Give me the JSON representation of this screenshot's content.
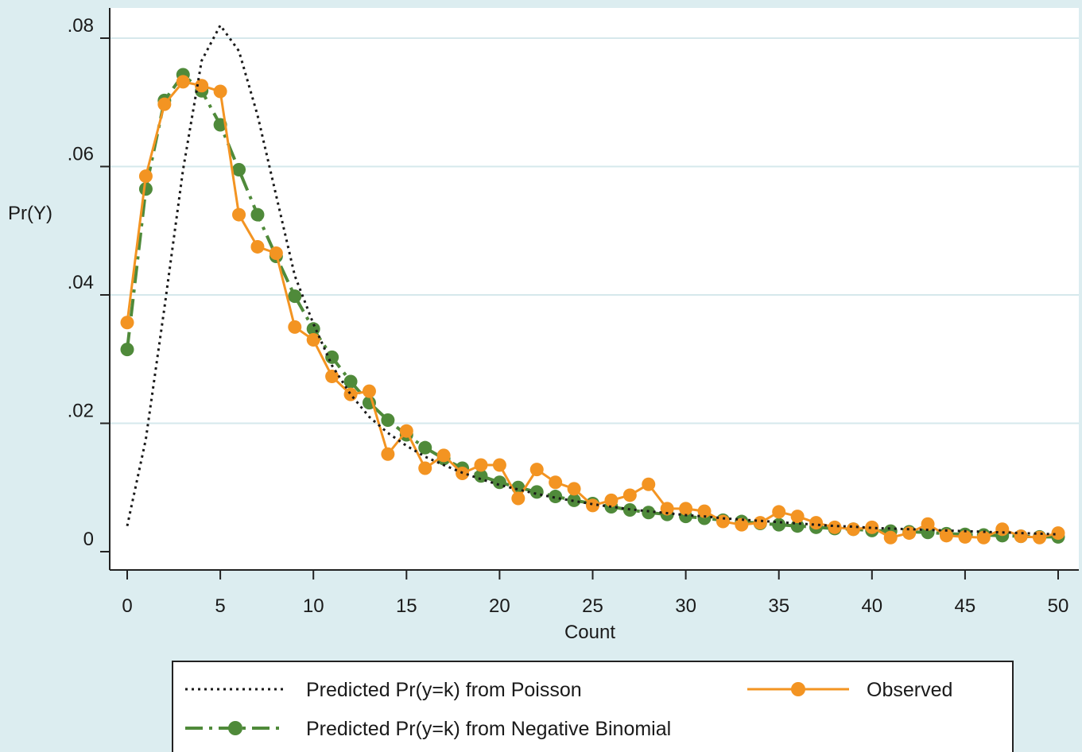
{
  "chart_data": {
    "type": "line",
    "title": "",
    "xlabel": "Count",
    "ylabel": "Pr(Y)",
    "xlim": [
      0,
      50
    ],
    "ylim": [
      0,
      0.08
    ],
    "x_ticks": [
      0,
      5,
      10,
      15,
      20,
      25,
      30,
      35,
      40,
      45,
      50
    ],
    "x_tick_labels": [
      "0",
      "5",
      "10",
      "15",
      "20",
      "25",
      "30",
      "35",
      "40",
      "45",
      "50"
    ],
    "y_ticks": [
      0,
      0.02,
      0.04,
      0.06,
      0.08
    ],
    "y_tick_labels": [
      "0",
      ".02",
      ".04",
      ".06",
      ".08"
    ],
    "grid": "horizontal",
    "legend_position": "bottom",
    "colors": {
      "background": "#dcedf0",
      "plot_area": "#ffffff",
      "grid": "#d6e8ec",
      "poisson": "#1a1a1a",
      "negative_binomial": "#4f8a3a",
      "observed": "#f39422"
    },
    "x": [
      0,
      1,
      2,
      3,
      4,
      5,
      6,
      7,
      8,
      9,
      10,
      11,
      12,
      13,
      14,
      15,
      16,
      17,
      18,
      19,
      20,
      21,
      22,
      23,
      24,
      25,
      26,
      27,
      28,
      29,
      30,
      31,
      32,
      33,
      34,
      35,
      36,
      37,
      38,
      39,
      40,
      41,
      42,
      43,
      44,
      45,
      46,
      47,
      48,
      49,
      50
    ],
    "series": [
      {
        "name": "Predicted Pr(y=k) from Poisson",
        "style": "dotted",
        "values": [
          0.004,
          0.0175,
          0.038,
          0.0595,
          0.0765,
          0.082,
          0.078,
          0.068,
          0.0555,
          0.043,
          0.0355,
          0.029,
          0.0245,
          0.021,
          0.0185,
          0.0165,
          0.0148,
          0.0135,
          0.0123,
          0.0113,
          0.0104,
          0.0097,
          0.009,
          0.0084,
          0.0079,
          0.0074,
          0.007,
          0.0066,
          0.0063,
          0.006,
          0.0057,
          0.0055,
          0.0052,
          0.005,
          0.0048,
          0.0046,
          0.0044,
          0.0042,
          0.004,
          0.0039,
          0.0037,
          0.0036,
          0.0035,
          0.0034,
          0.0033,
          0.0032,
          0.0031,
          0.003,
          0.0029,
          0.0028,
          0.0027
        ]
      },
      {
        "name": "Predicted Pr(y=k) from Negative Binomial",
        "style": "dash-dot with markers",
        "values": [
          0.0315,
          0.0565,
          0.0703,
          0.0743,
          0.0718,
          0.0665,
          0.0595,
          0.0525,
          0.046,
          0.0398,
          0.0347,
          0.0303,
          0.0265,
          0.0232,
          0.0205,
          0.0182,
          0.0162,
          0.0145,
          0.013,
          0.0118,
          0.0108,
          0.01,
          0.0093,
          0.0086,
          0.008,
          0.0075,
          0.007,
          0.0065,
          0.0061,
          0.0058,
          0.0055,
          0.0052,
          0.0049,
          0.0047,
          0.0044,
          0.0042,
          0.004,
          0.0038,
          0.0036,
          0.0035,
          0.0033,
          0.0032,
          0.0031,
          0.003,
          0.0028,
          0.0027,
          0.0026,
          0.0025,
          0.0024,
          0.0023,
          0.0023
        ]
      },
      {
        "name": "Observed",
        "style": "solid with markers",
        "values": [
          0.0357,
          0.0585,
          0.0697,
          0.0732,
          0.0726,
          0.0717,
          0.0525,
          0.0475,
          0.0465,
          0.035,
          0.033,
          0.0273,
          0.0245,
          0.025,
          0.0152,
          0.0188,
          0.013,
          0.015,
          0.0122,
          0.0135,
          0.0135,
          0.0083,
          0.0128,
          0.0108,
          0.0098,
          0.0072,
          0.008,
          0.0088,
          0.0105,
          0.0067,
          0.0067,
          0.0063,
          0.0047,
          0.0042,
          0.0045,
          0.0062,
          0.0055,
          0.0045,
          0.0038,
          0.0035,
          0.0038,
          0.0022,
          0.0029,
          0.0043,
          0.0025,
          0.0023,
          0.0022,
          0.0035,
          0.0024,
          0.0022,
          0.0029
        ]
      }
    ]
  }
}
